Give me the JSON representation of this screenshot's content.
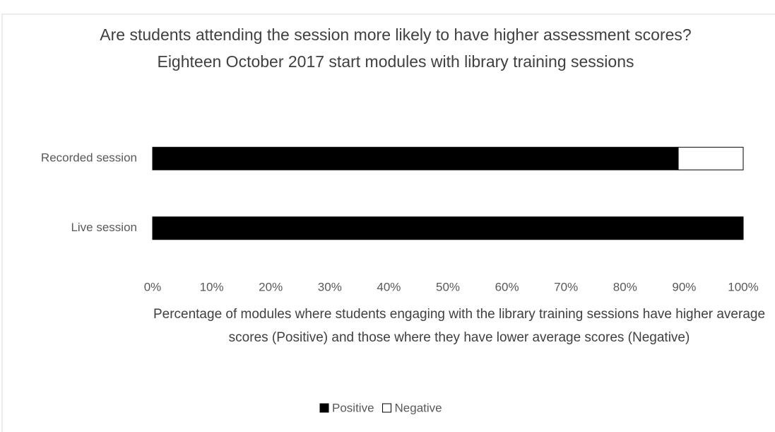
{
  "chart_data": {
    "type": "stacked_bar_horizontal",
    "title": "Are students attending the session more likely to have higher assessment scores? Eighteen October 2017 start modules with library training sessions",
    "x_label": "Percentage of modules where students engaging with the library training sessions have higher average scores (Positive) and those where they have lower average scores (Negative)",
    "categories": [
      "Recorded session",
      "Live session"
    ],
    "series": [
      {
        "name": "Positive",
        "color": "#000000",
        "values": [
          89,
          100
        ]
      },
      {
        "name": "Negative",
        "color": "#ffffff",
        "values": [
          11,
          0
        ]
      }
    ],
    "xlim": [
      0,
      100
    ],
    "xticks": [
      {
        "value": 0,
        "label": "0%"
      },
      {
        "value": 10,
        "label": "10%"
      },
      {
        "value": 20,
        "label": "20%"
      },
      {
        "value": 30,
        "label": "30%"
      },
      {
        "value": 40,
        "label": "40%"
      },
      {
        "value": 50,
        "label": "50%"
      },
      {
        "value": 60,
        "label": "60%"
      },
      {
        "value": 70,
        "label": "70%"
      },
      {
        "value": 80,
        "label": "80%"
      },
      {
        "value": 90,
        "label": "90%"
      },
      {
        "value": 100,
        "label": "100%"
      }
    ],
    "legend": "bottom"
  }
}
